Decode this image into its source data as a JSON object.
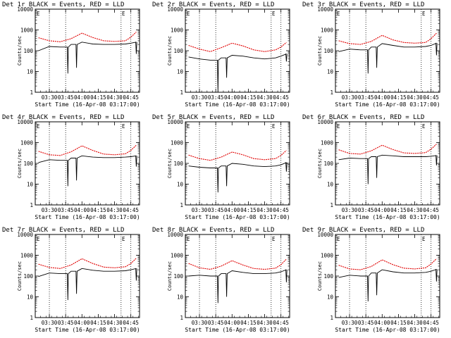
{
  "chart_data": [
    {
      "type": "line",
      "title": "Det 1r BLACK = Events, RED = LLD",
      "marker": "E",
      "xlabel": "Start Time (16-Apr-08 03:17:00)",
      "ylabel": "Counts/sec",
      "x_ticks": [
        "03:30",
        "03:45",
        "04:00",
        "04:15",
        "04:30",
        "04:45"
      ],
      "y_ticks": [
        "1",
        "10",
        "100",
        "1000",
        "10000"
      ],
      "ylim": [
        1,
        10000
      ],
      "yscale": "log",
      "vlines": [
        "03:30",
        "03:45",
        "04:36",
        "04:45"
      ],
      "series": [
        {
          "name": "BLACK = Events",
          "color": "#000000",
          "x": [
            "03:20",
            "03:30",
            "03:40",
            "03:50",
            "04:00",
            "04:10",
            "04:20",
            "04:30",
            "04:40",
            "04:45",
            "04:50"
          ],
          "y": [
            100,
            160,
            150,
            200,
            260,
            210,
            200,
            200,
            210,
            230,
            260
          ]
        },
        {
          "name": "RED = LLD",
          "color": "#e00000",
          "x": [
            "03:20",
            "03:30",
            "03:40",
            "03:50",
            "04:00",
            "04:10",
            "04:20",
            "04:30",
            "04:40",
            "04:45",
            "04:50"
          ],
          "y": [
            420,
            300,
            270,
            380,
            700,
            430,
            300,
            280,
            300,
            450,
            800
          ]
        }
      ],
      "dips": [
        {
          "x": "03:47",
          "y": 8
        },
        {
          "x": "03:55",
          "y": 15
        },
        {
          "x": "04:50",
          "y": 70
        }
      ]
    },
    {
      "type": "line",
      "title": "Det 2r BLACK = Events, RED = LLD",
      "marker": "E",
      "xlabel": "Start Time (16-Apr-08 03:17:00)",
      "ylabel": "Counts/sec",
      "x_ticks": [
        "03:30",
        "03:45",
        "04:00",
        "04:15",
        "04:30",
        "04:45"
      ],
      "y_ticks": [
        "1",
        "10",
        "100",
        "1000",
        "10000"
      ],
      "ylim": [
        1,
        10000
      ],
      "yscale": "log",
      "vlines": [
        "03:30",
        "03:45",
        "04:36",
        "04:45"
      ],
      "series": [
        {
          "name": "BLACK = Events",
          "color": "#000000",
          "x": [
            "03:20",
            "03:30",
            "03:40",
            "03:50",
            "04:00",
            "04:10",
            "04:20",
            "04:30",
            "04:40",
            "04:45",
            "04:50"
          ],
          "y": [
            50,
            40,
            35,
            45,
            60,
            55,
            45,
            40,
            45,
            55,
            70
          ]
        },
        {
          "name": "RED = LLD",
          "color": "#e00000",
          "x": [
            "03:20",
            "03:30",
            "03:40",
            "03:50",
            "04:00",
            "04:10",
            "04:20",
            "04:30",
            "04:40",
            "04:45",
            "04:50"
          ],
          "y": [
            180,
            120,
            90,
            140,
            230,
            170,
            110,
            90,
            110,
            150,
            250
          ]
        }
      ],
      "dips": [
        {
          "x": "03:47",
          "y": 1
        },
        {
          "x": "03:55",
          "y": 5
        },
        {
          "x": "04:50",
          "y": 30
        }
      ]
    },
    {
      "type": "line",
      "title": "Det 3r BLACK = Events, RED = LLD",
      "marker": "E",
      "xlabel": "Start Time (16-Apr-08 03:17:00)",
      "ylabel": "Counts/sec",
      "x_ticks": [
        "03:30",
        "03:45",
        "04:00",
        "04:15",
        "04:30",
        "04:45"
      ],
      "y_ticks": [
        "1",
        "10",
        "100",
        "1000",
        "10000"
      ],
      "ylim": [
        1,
        10000
      ],
      "yscale": "log",
      "vlines": [
        "03:30",
        "03:45",
        "04:36",
        "04:45"
      ],
      "series": [
        {
          "name": "BLACK = Events",
          "color": "#000000",
          "x": [
            "03:20",
            "03:30",
            "03:40",
            "03:50",
            "04:00",
            "04:10",
            "04:20",
            "04:30",
            "04:40",
            "04:45",
            "04:50"
          ],
          "y": [
            90,
            120,
            110,
            150,
            220,
            180,
            150,
            150,
            160,
            180,
            230
          ]
        },
        {
          "name": "RED = LLD",
          "color": "#e00000",
          "x": [
            "03:20",
            "03:30",
            "03:40",
            "03:50",
            "04:00",
            "04:10",
            "04:20",
            "04:30",
            "04:40",
            "04:45",
            "04:50"
          ],
          "y": [
            300,
            220,
            200,
            280,
            550,
            330,
            250,
            230,
            250,
            380,
            700
          ]
        }
      ],
      "dips": [
        {
          "x": "03:47",
          "y": 8
        },
        {
          "x": "03:55",
          "y": 15
        },
        {
          "x": "04:50",
          "y": 60
        }
      ]
    },
    {
      "type": "line",
      "title": "Det 4r BLACK = Events, RED = LLD",
      "marker": "E",
      "xlabel": "Start Time (16-Apr-08 03:17:00)",
      "ylabel": "Counts/sec",
      "x_ticks": [
        "03:30",
        "03:45",
        "04:00",
        "04:15",
        "04:30",
        "04:45"
      ],
      "y_ticks": [
        "1",
        "10",
        "100",
        "1000",
        "10000"
      ],
      "ylim": [
        1,
        10000
      ],
      "yscale": "log",
      "vlines": [
        "03:30",
        "03:45",
        "04:36",
        "04:45"
      ],
      "series": [
        {
          "name": "BLACK = Events",
          "color": "#000000",
          "x": [
            "03:20",
            "03:30",
            "03:40",
            "03:50",
            "04:00",
            "04:10",
            "04:20",
            "04:30",
            "04:40",
            "04:45",
            "04:50"
          ],
          "y": [
            110,
            150,
            140,
            180,
            230,
            200,
            190,
            190,
            200,
            210,
            230
          ]
        },
        {
          "name": "RED = LLD",
          "color": "#e00000",
          "x": [
            "03:20",
            "03:30",
            "03:40",
            "03:50",
            "04:00",
            "04:10",
            "04:20",
            "04:30",
            "04:40",
            "04:45",
            "04:50"
          ],
          "y": [
            380,
            260,
            240,
            360,
            700,
            420,
            280,
            260,
            290,
            420,
            750
          ]
        }
      ],
      "dips": [
        {
          "x": "03:47",
          "y": 8
        },
        {
          "x": "03:55",
          "y": 15
        },
        {
          "x": "04:50",
          "y": 70
        }
      ]
    },
    {
      "type": "line",
      "title": "Det 5r BLACK = Events, RED = LLD",
      "marker": "E",
      "xlabel": "Start Time (16-Apr-08 03:17:00)",
      "ylabel": "Counts/sec",
      "x_ticks": [
        "03:30",
        "03:45",
        "04:00",
        "04:15",
        "04:30",
        "04:45"
      ],
      "y_ticks": [
        "1",
        "10",
        "100",
        "1000",
        "10000"
      ],
      "ylim": [
        1,
        10000
      ],
      "yscale": "log",
      "vlines": [
        "03:30",
        "03:45",
        "04:36",
        "04:45"
      ],
      "series": [
        {
          "name": "BLACK = Events",
          "color": "#000000",
          "x": [
            "03:20",
            "03:30",
            "03:40",
            "03:50",
            "04:00",
            "04:10",
            "04:20",
            "04:30",
            "04:40",
            "04:45",
            "04:50"
          ],
          "y": [
            75,
            65,
            60,
            75,
            100,
            90,
            75,
            70,
            75,
            85,
            110
          ]
        },
        {
          "name": "RED = LLD",
          "color": "#e00000",
          "x": [
            "03:20",
            "03:30",
            "03:40",
            "03:50",
            "04:00",
            "04:10",
            "04:20",
            "04:30",
            "04:40",
            "04:45",
            "04:50"
          ],
          "y": [
            250,
            170,
            140,
            200,
            350,
            260,
            170,
            150,
            170,
            240,
            420
          ]
        }
      ],
      "dips": [
        {
          "x": "03:47",
          "y": 4
        },
        {
          "x": "03:55",
          "y": 8
        },
        {
          "x": "04:50",
          "y": 40
        }
      ]
    },
    {
      "type": "line",
      "title": "Det 6r BLACK = Events, RED = LLD",
      "marker": "E",
      "xlabel": "Start Time (16-Apr-08 03:17:00)",
      "ylabel": "Counts/sec",
      "x_ticks": [
        "03:30",
        "03:45",
        "04:00",
        "04:15",
        "04:30",
        "04:45"
      ],
      "y_ticks": [
        "1",
        "10",
        "100",
        "1000",
        "10000"
      ],
      "ylim": [
        1,
        10000
      ],
      "yscale": "log",
      "vlines": [
        "03:30",
        "03:45",
        "04:36",
        "04:45"
      ],
      "series": [
        {
          "name": "BLACK = Events",
          "color": "#000000",
          "x": [
            "03:20",
            "03:30",
            "03:40",
            "03:50",
            "04:00",
            "04:10",
            "04:20",
            "04:30",
            "04:40",
            "04:45",
            "04:50"
          ],
          "y": [
            150,
            180,
            170,
            210,
            250,
            230,
            210,
            210,
            210,
            220,
            240
          ]
        },
        {
          "name": "RED = LLD",
          "color": "#e00000",
          "x": [
            "03:20",
            "03:30",
            "03:40",
            "03:50",
            "04:00",
            "04:10",
            "04:20",
            "04:30",
            "04:40",
            "04:45",
            "04:50"
          ],
          "y": [
            450,
            300,
            280,
            400,
            750,
            460,
            320,
            300,
            330,
            480,
            850
          ]
        }
      ],
      "dips": [
        {
          "x": "03:47",
          "y": 10
        },
        {
          "x": "03:55",
          "y": 20
        },
        {
          "x": "04:50",
          "y": 80
        }
      ]
    },
    {
      "type": "line",
      "title": "Det 7r BLACK = Events, RED = LLD",
      "marker": "E",
      "xlabel": "Start Time (16-Apr-08 03:17:00)",
      "ylabel": "Counts/sec",
      "x_ticks": [
        "03:30",
        "03:45",
        "04:00",
        "04:15",
        "04:30",
        "04:45"
      ],
      "y_ticks": [
        "1",
        "10",
        "100",
        "1000",
        "10000"
      ],
      "ylim": [
        1,
        10000
      ],
      "yscale": "log",
      "vlines": [
        "03:30",
        "03:45",
        "04:36",
        "04:45"
      ],
      "series": [
        {
          "name": "BLACK = Events",
          "color": "#000000",
          "x": [
            "03:20",
            "03:30",
            "03:40",
            "03:50",
            "04:00",
            "04:10",
            "04:20",
            "04:30",
            "04:40",
            "04:45",
            "04:50"
          ],
          "y": [
            95,
            140,
            130,
            170,
            230,
            190,
            170,
            170,
            180,
            200,
            230
          ]
        },
        {
          "name": "RED = LLD",
          "color": "#e00000",
          "x": [
            "03:20",
            "03:30",
            "03:40",
            "03:50",
            "04:00",
            "04:10",
            "04:20",
            "04:30",
            "04:40",
            "04:45",
            "04:50"
          ],
          "y": [
            370,
            260,
            230,
            340,
            680,
            400,
            270,
            250,
            280,
            400,
            720
          ]
        }
      ],
      "dips": [
        {
          "x": "03:47",
          "y": 7
        },
        {
          "x": "03:55",
          "y": 14
        },
        {
          "x": "04:50",
          "y": 60
        }
      ]
    },
    {
      "type": "line",
      "title": "Det 8r BLACK = Events, RED = LLD",
      "marker": "E",
      "xlabel": "Start Time (16-Apr-08 03:17:00)",
      "ylabel": "Counts/sec",
      "x_ticks": [
        "03:30",
        "03:45",
        "04:00",
        "04:15",
        "04:30",
        "04:45"
      ],
      "y_ticks": [
        "1",
        "10",
        "100",
        "1000",
        "10000"
      ],
      "ylim": [
        1,
        10000
      ],
      "yscale": "log",
      "vlines": [
        "03:30",
        "03:45",
        "04:36",
        "04:45"
      ],
      "series": [
        {
          "name": "BLACK = Events",
          "color": "#000000",
          "x": [
            "03:20",
            "03:30",
            "03:40",
            "03:50",
            "04:00",
            "04:10",
            "04:20",
            "04:30",
            "04:40",
            "04:45",
            "04:50"
          ],
          "y": [
            100,
            110,
            100,
            130,
            180,
            150,
            130,
            130,
            140,
            160,
            200
          ]
        },
        {
          "name": "RED = LLD",
          "color": "#e00000",
          "x": [
            "03:20",
            "03:30",
            "03:40",
            "03:50",
            "04:00",
            "04:10",
            "04:20",
            "04:30",
            "04:40",
            "04:45",
            "04:50"
          ],
          "y": [
            400,
            250,
            210,
            300,
            550,
            340,
            230,
            210,
            240,
            350,
            650
          ]
        }
      ],
      "dips": [
        {
          "x": "03:47",
          "y": 5
        },
        {
          "x": "03:55",
          "y": 10
        },
        {
          "x": "04:50",
          "y": 50
        }
      ]
    },
    {
      "type": "line",
      "title": "Det 9r BLACK = Events, RED = LLD",
      "marker": "E",
      "xlabel": "Start Time (16-Apr-08 03:17:00)",
      "ylabel": "Counts/sec",
      "x_ticks": [
        "03:30",
        "03:45",
        "04:00",
        "04:15",
        "04:30",
        "04:45"
      ],
      "y_ticks": [
        "1",
        "10",
        "100",
        "1000",
        "10000"
      ],
      "ylim": [
        1,
        10000
      ],
      "yscale": "log",
      "vlines": [
        "03:30",
        "03:45",
        "04:36",
        "04:45"
      ],
      "series": [
        {
          "name": "BLACK = Events",
          "color": "#000000",
          "x": [
            "03:20",
            "03:30",
            "03:40",
            "03:50",
            "04:00",
            "04:10",
            "04:20",
            "04:30",
            "04:40",
            "04:45",
            "04:50"
          ],
          "y": [
            85,
            110,
            100,
            140,
            200,
            160,
            140,
            140,
            150,
            170,
            210
          ]
        },
        {
          "name": "RED = LLD",
          "color": "#e00000",
          "x": [
            "03:20",
            "03:30",
            "03:40",
            "03:50",
            "04:00",
            "04:10",
            "04:20",
            "04:30",
            "04:40",
            "04:45",
            "04:50"
          ],
          "y": [
            330,
            220,
            200,
            290,
            600,
            350,
            240,
            220,
            250,
            380,
            680
          ]
        }
      ],
      "dips": [
        {
          "x": "03:47",
          "y": 6
        },
        {
          "x": "03:55",
          "y": 12
        },
        {
          "x": "04:50",
          "y": 55
        }
      ]
    }
  ]
}
